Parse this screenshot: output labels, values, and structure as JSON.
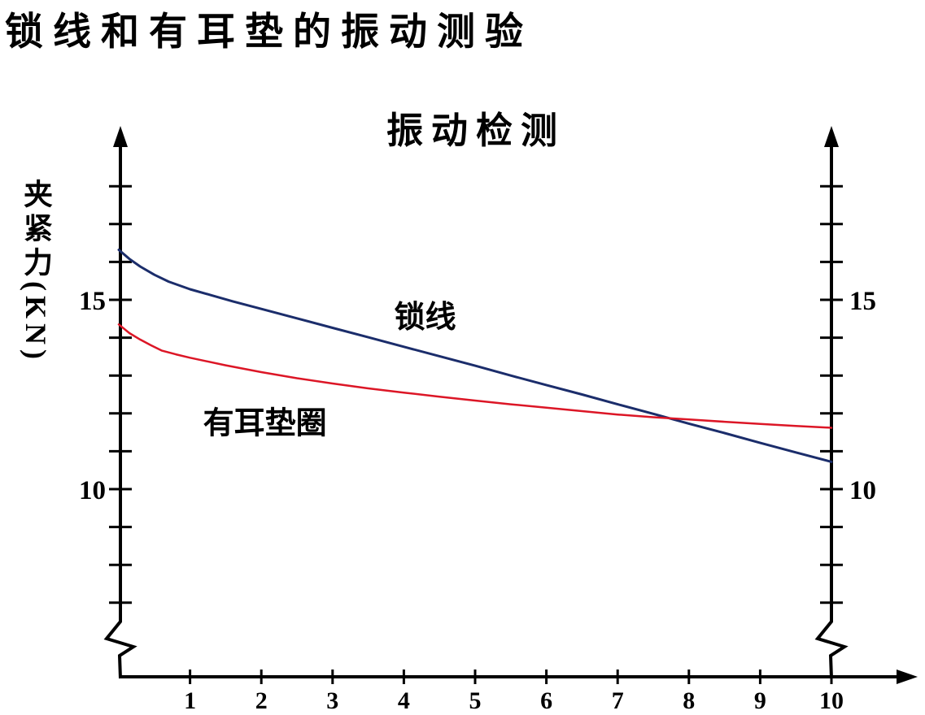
{
  "page_title": "锁线和有耳垫的振动测验",
  "colors": {
    "background": "#ffffff",
    "axis": "#000000",
    "lock_wire_line": "#1b2d6b",
    "eared_washer_line": "#dc1626"
  },
  "chart_data": {
    "type": "line",
    "title": "振动检测",
    "ylabel": "夹紧力(KN)",
    "xlabel": "",
    "xlim": [
      0,
      10
    ],
    "ylim_visible": [
      7,
      18
    ],
    "x_ticks": [
      1,
      2,
      3,
      4,
      5,
      6,
      7,
      8,
      9,
      10
    ],
    "y_labeled_ticks": [
      15,
      10
    ],
    "y_minor_ticks": [
      18,
      17,
      16,
      15,
      14,
      13,
      12,
      11,
      10,
      9,
      8,
      7
    ],
    "dual_y_axis": true,
    "y_axis_break": true,
    "grid": false,
    "legend_position": "inline-annotations",
    "series": [
      {
        "id": "lock_wire",
        "name": "锁线",
        "color": "#1b2d6b",
        "points": [
          [
            0,
            16.32
          ],
          [
            0.15,
            16.08
          ],
          [
            0.3,
            15.88
          ],
          [
            0.5,
            15.66
          ],
          [
            0.7,
            15.48
          ],
          [
            1,
            15.28
          ],
          [
            1.3,
            15.12
          ],
          [
            1.6,
            14.96
          ],
          [
            2,
            14.76
          ],
          [
            2.5,
            14.51
          ],
          [
            3,
            14.26
          ],
          [
            3.5,
            14.01
          ],
          [
            4,
            13.76
          ],
          [
            4.5,
            13.51
          ],
          [
            5,
            13.26
          ],
          [
            5.5,
            13.0
          ],
          [
            6,
            12.75
          ],
          [
            6.5,
            12.5
          ],
          [
            7,
            12.24
          ],
          [
            7.5,
            11.99
          ],
          [
            8,
            11.73
          ],
          [
            8.5,
            11.48
          ],
          [
            9,
            11.22
          ],
          [
            9.5,
            10.97
          ],
          [
            10,
            10.72
          ]
        ]
      },
      {
        "id": "eared_washer",
        "name": "有耳垫圈",
        "color": "#dc1626",
        "points": [
          [
            0,
            14.35
          ],
          [
            0.15,
            14.12
          ],
          [
            0.3,
            13.95
          ],
          [
            0.45,
            13.8
          ],
          [
            0.6,
            13.66
          ],
          [
            0.8,
            13.56
          ],
          [
            1,
            13.47
          ],
          [
            1.5,
            13.27
          ],
          [
            2,
            13.09
          ],
          [
            2.5,
            12.93
          ],
          [
            3,
            12.79
          ],
          [
            3.5,
            12.66
          ],
          [
            4,
            12.55
          ],
          [
            4.5,
            12.44
          ],
          [
            5,
            12.34
          ],
          [
            5.5,
            12.24
          ],
          [
            6,
            12.15
          ],
          [
            6.5,
            12.06
          ],
          [
            7,
            11.97
          ],
          [
            7.5,
            11.9
          ],
          [
            8,
            11.84
          ],
          [
            8.5,
            11.78
          ],
          [
            9,
            11.72
          ],
          [
            9.5,
            11.67
          ],
          [
            10,
            11.62
          ]
        ]
      }
    ],
    "annotations": [
      {
        "id": "lock_wire",
        "text": "锁线",
        "x": 4.3,
        "y": 14.55
      },
      {
        "id": "eared_washer",
        "text": "有耳垫圈",
        "x": 2.05,
        "y": 11.75
      }
    ]
  }
}
